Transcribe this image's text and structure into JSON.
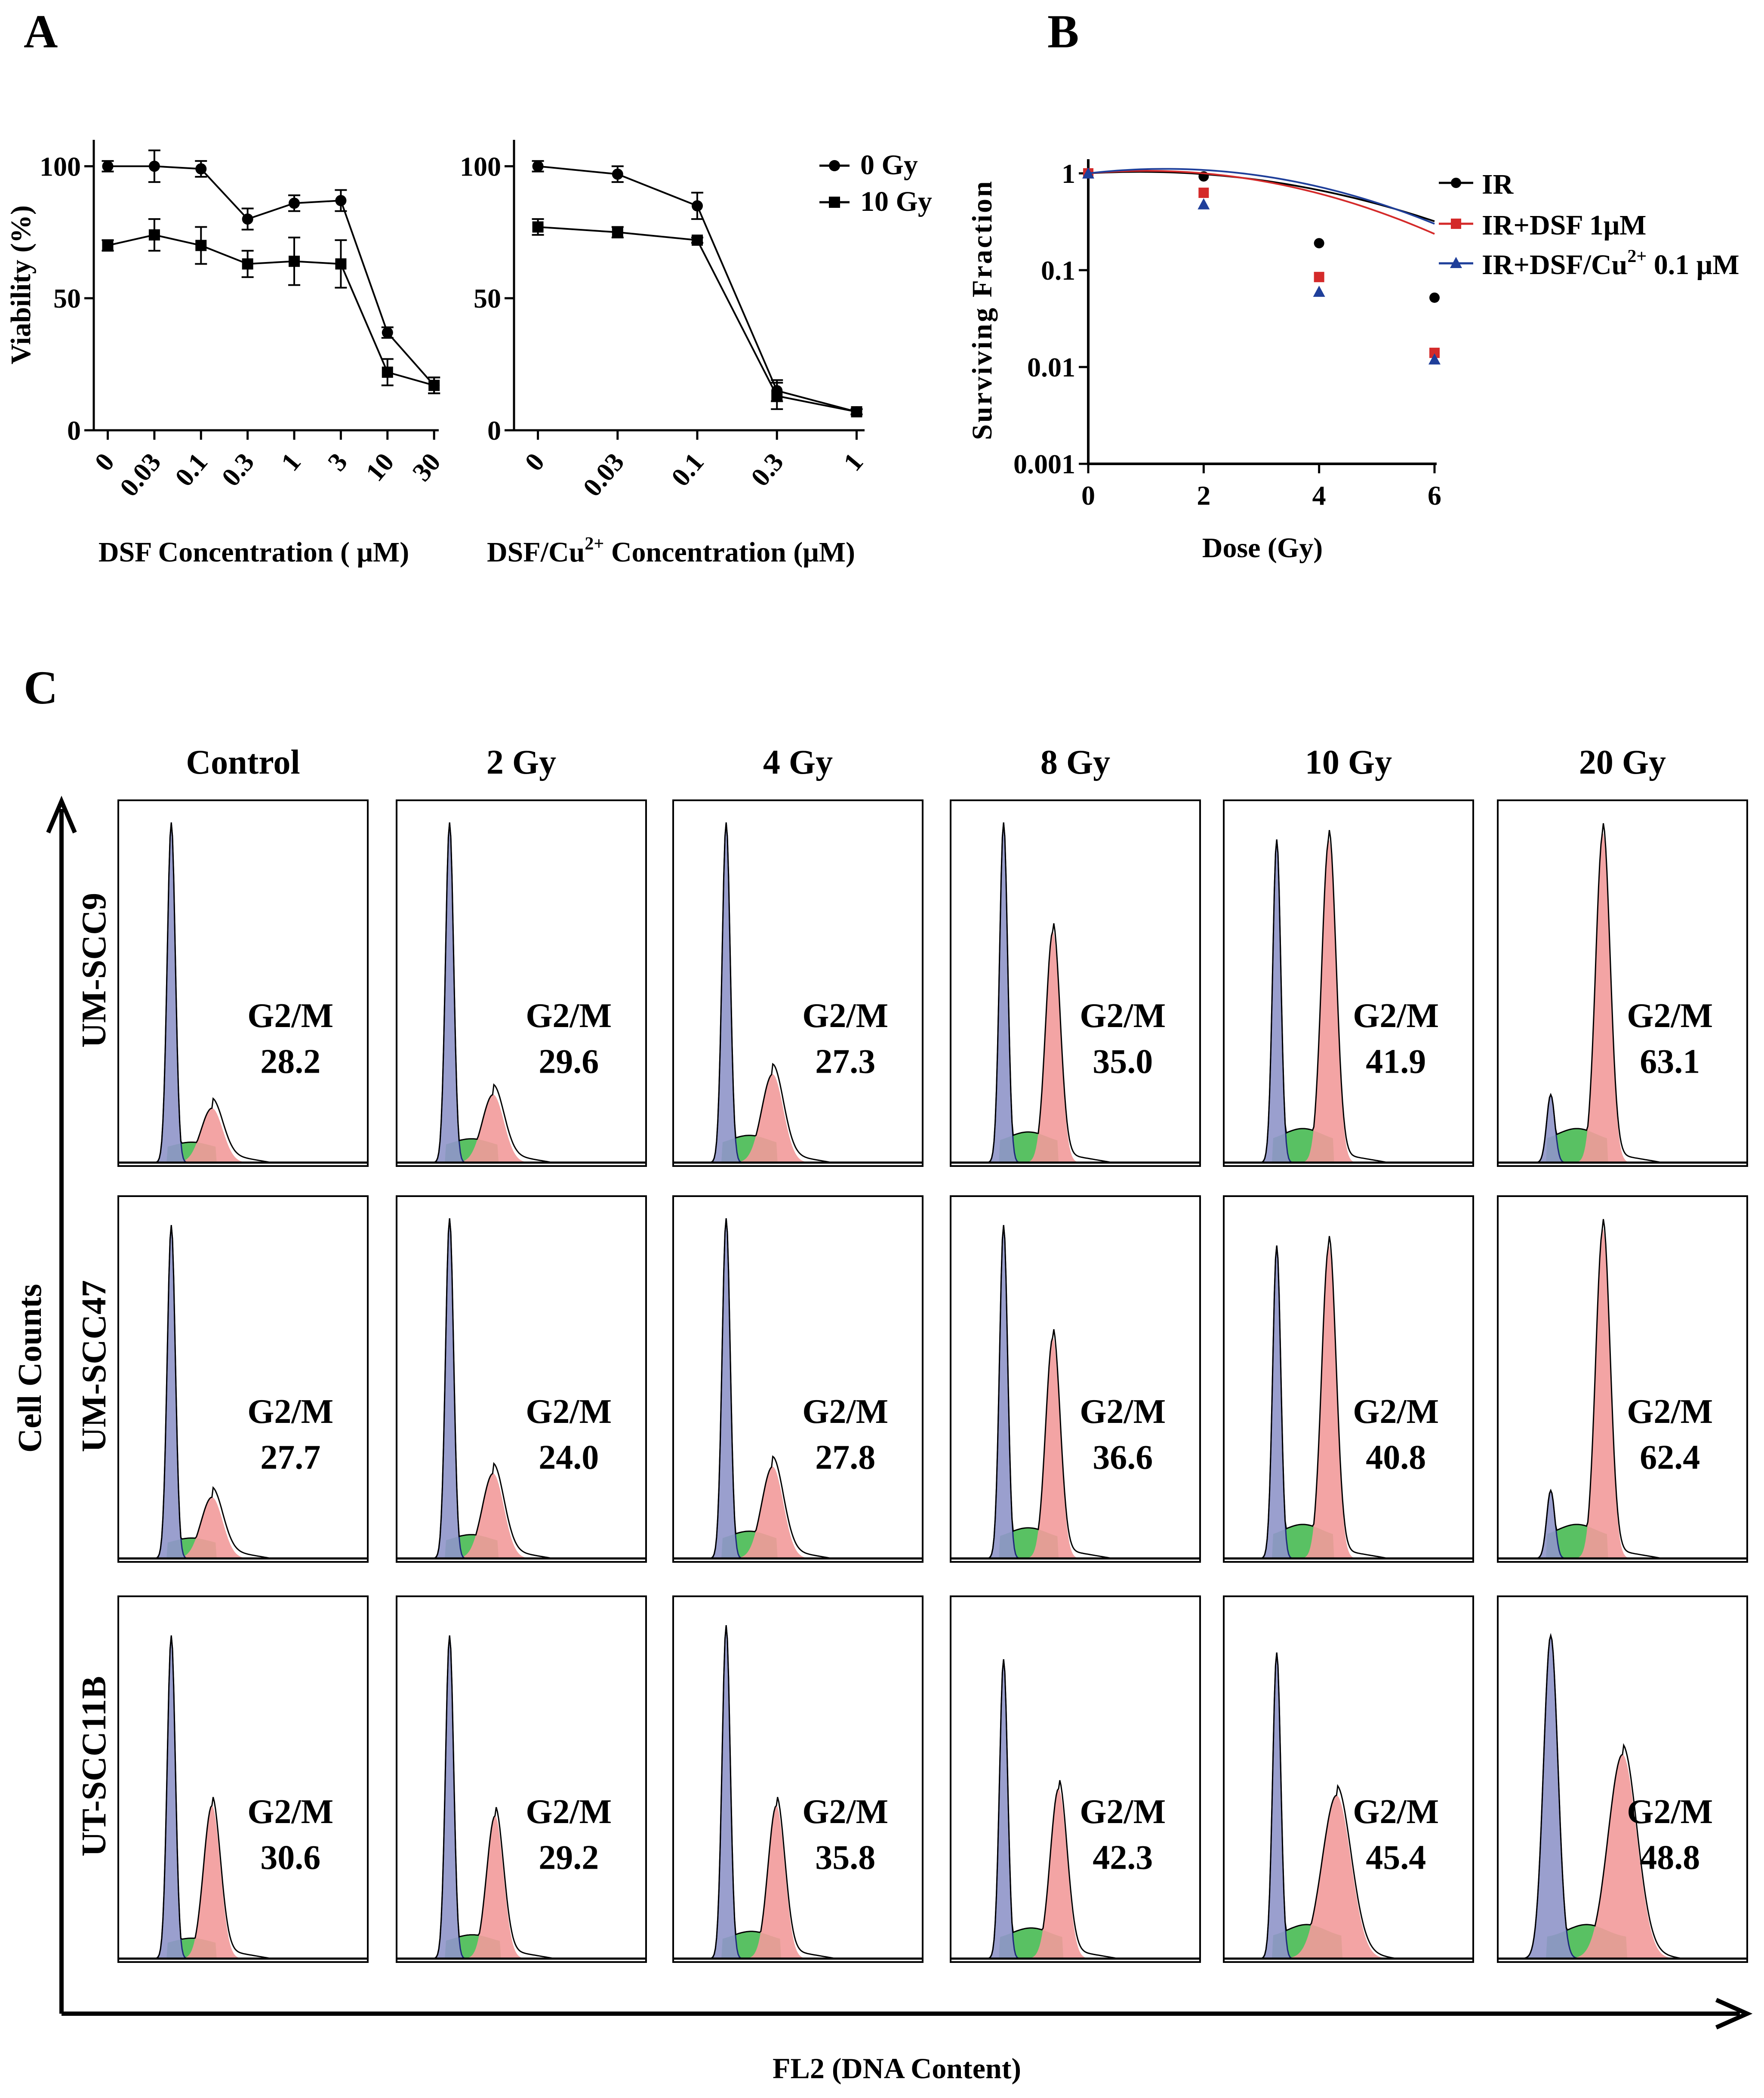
{
  "panels": {
    "a": "A",
    "b": "B",
    "c": "C"
  },
  "colors": {
    "black": "#000000",
    "ir": "#000000",
    "dsf": "#d42a2a",
    "dsfcu": "#1f3f9a",
    "g1_fill": "#8f95c9",
    "g1_line": "#1e2a7a",
    "s_fill": "#3cb648",
    "g2_fill": "#f29a9a",
    "g2_line": "#8a1c1c"
  },
  "chart_data": [
    {
      "id": "a1",
      "type": "line",
      "xlabel": "DSF Concentration ( μM)",
      "ylabel": "Viability (%)",
      "categories": [
        "0",
        "0.03",
        "0.1",
        "0.3",
        "1",
        "3",
        "10",
        "30"
      ],
      "yticks": [
        "0",
        "50",
        "100"
      ],
      "ylim": [
        0,
        110
      ],
      "series": [
        {
          "name": "0 Gy",
          "marker": "circle",
          "values": [
            100,
            100,
            99,
            80,
            86,
            87,
            37,
            17
          ],
          "errors": [
            2,
            6,
            3,
            4,
            3,
            4,
            2,
            3
          ]
        },
        {
          "name": "10 Gy",
          "marker": "square",
          "values": [
            70,
            74,
            70,
            63,
            64,
            63,
            22,
            17
          ],
          "errors": [
            2,
            6,
            7,
            5,
            9,
            9,
            5,
            3
          ]
        }
      ]
    },
    {
      "id": "a2",
      "type": "line",
      "xlabel_prefix": "DSF/Cu",
      "xlabel_sup": "2+",
      "xlabel_suffix": " Concentration (μM)",
      "categories": [
        "0",
        "0.03",
        "0.1",
        "0.3",
        "1"
      ],
      "yticks": [
        "0",
        "50",
        "100"
      ],
      "ylim": [
        0,
        110
      ],
      "legend": [
        "0 Gy",
        "10 Gy"
      ],
      "series": [
        {
          "name": "0 Gy",
          "marker": "circle",
          "values": [
            100,
            97,
            85,
            15,
            7
          ],
          "errors": [
            2,
            3,
            5,
            4,
            1
          ]
        },
        {
          "name": "10 Gy",
          "marker": "square",
          "values": [
            77,
            75,
            72,
            13,
            7
          ],
          "errors": [
            3,
            2,
            1,
            5,
            1
          ]
        }
      ]
    },
    {
      "id": "b",
      "type": "line",
      "xlabel": "Dose (Gy)",
      "ylabel": "Surviving Fraction",
      "yscale": "log",
      "xticks": [
        "0",
        "2",
        "4",
        "6"
      ],
      "yticks": [
        "1",
        "0.1",
        "0.01",
        "0.001"
      ],
      "xlim": [
        0,
        6
      ],
      "ylim": [
        0.001,
        1.4
      ],
      "series": [
        {
          "name": "IR",
          "marker": "circle",
          "x": [
            0,
            2,
            4,
            6
          ],
          "y": [
            1.0,
            0.93,
            0.19,
            0.052
          ],
          "fit": [
            0.08,
            0.045
          ]
        },
        {
          "name": "IR+DSF 1μM",
          "marker": "square",
          "x": [
            0,
            2,
            4,
            6
          ],
          "y": [
            1.0,
            0.63,
            0.085,
            0.014
          ],
          "fit": [
            0.12,
            0.06
          ]
        },
        {
          "name": "IR+DSF/Cu",
          "name_sup": "2+",
          "name_suffix": " 0.1 μM",
          "marker": "triangle",
          "x": [
            0,
            2,
            4,
            6
          ],
          "y": [
            1.0,
            0.48,
            0.06,
            0.012
          ],
          "fit": [
            0.16,
            0.06
          ]
        }
      ]
    },
    {
      "id": "c",
      "type": "histogram-grid",
      "xlabel": "FL2 (DNA Content)",
      "ylabel": "Cell Counts",
      "columns": [
        "Control",
        "2 Gy",
        "4 Gy",
        "8 Gy",
        "10 Gy",
        "20 Gy"
      ],
      "rows": [
        "UM-SCC9",
        "UM-SCC47",
        "UT-SCC11B"
      ],
      "label": "G2/M",
      "g2m_values": [
        [
          "28.2",
          "29.6",
          "27.3",
          "35.0",
          "41.9",
          "63.1"
        ],
        [
          "27.7",
          "24.0",
          "27.8",
          "36.6",
          "40.8",
          "62.4"
        ],
        [
          "30.6",
          "29.2",
          "35.8",
          "42.3",
          "45.4",
          "48.8"
        ]
      ],
      "g1_peak_height": [
        [
          1.0,
          1.0,
          1.0,
          1.0,
          0.95,
          0.2
        ],
        [
          0.98,
          1.0,
          1.0,
          0.98,
          0.92,
          0.2
        ],
        [
          0.95,
          0.95,
          0.98,
          0.88,
          0.9,
          0.95
        ]
      ],
      "g2_peak_height": [
        [
          0.16,
          0.2,
          0.26,
          0.68,
          0.95,
          0.97
        ],
        [
          0.18,
          0.25,
          0.27,
          0.65,
          0.92,
          0.97
        ],
        [
          0.45,
          0.42,
          0.45,
          0.5,
          0.48,
          0.6
        ]
      ]
    }
  ]
}
